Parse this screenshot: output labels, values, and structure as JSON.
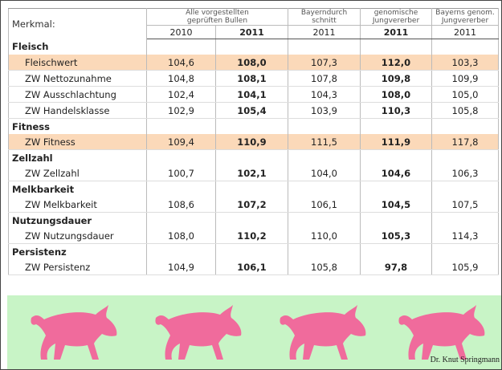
{
  "table": {
    "header": {
      "label": "Merkmal:",
      "groups": [
        "Alle vorgestellten\ngeprüften Bullen",
        "Bayerndurch\nschnitt",
        "genomische\nJungvererber",
        "Bayerns genom.\nJungvererber"
      ],
      "years": [
        "2010",
        "2011",
        "2011",
        "2011",
        "2011"
      ]
    },
    "sections": [
      {
        "title": "Fleisch",
        "rows": [
          {
            "label": "Fleischwert",
            "values": [
              "104,6",
              "108,0",
              "107,3",
              "112,0",
              "103,3"
            ],
            "highlight": true
          },
          {
            "label": "ZW Nettozunahme",
            "values": [
              "104,8",
              "108,1",
              "107,8",
              "109,8",
              "109,9"
            ]
          },
          {
            "label": "ZW Ausschlachtung",
            "values": [
              "102,4",
              "104,1",
              "104,3",
              "108,0",
              "105,0"
            ]
          },
          {
            "label": "ZW Handelsklasse",
            "values": [
              "102,9",
              "105,4",
              "103,9",
              "110,3",
              "105,8"
            ]
          }
        ]
      },
      {
        "title": "Fitness",
        "rows": [
          {
            "label": "ZW Fitness",
            "values": [
              "109,4",
              "110,9",
              "111,5",
              "111,9",
              "117,8"
            ],
            "highlight": true
          }
        ]
      },
      {
        "title": "Zellzahl",
        "rows": [
          {
            "label": "ZW Zellzahl",
            "values": [
              "100,7",
              "102,1",
              "104,0",
              "104,6",
              "106,3"
            ]
          }
        ]
      },
      {
        "title": "Melkbarkeit",
        "rows": [
          {
            "label": "ZW Melkbarkeit",
            "values": [
              "108,6",
              "107,2",
              "106,1",
              "104,5",
              "107,5"
            ]
          }
        ]
      },
      {
        "title": "Nutzungsdauer",
        "rows": [
          {
            "label": "ZW Nutzungsdauer",
            "values": [
              "108,0",
              "110,2",
              "110,0",
              "105,3",
              "114,3"
            ]
          }
        ]
      },
      {
        "title": "Persistenz",
        "rows": [
          {
            "label": "ZW Persistenz",
            "values": [
              "104,9",
              "106,1",
              "105,8",
              "97,8",
              "105,9"
            ]
          }
        ]
      }
    ]
  },
  "footer": {
    "credit": "Dr. Knut Springmann"
  }
}
